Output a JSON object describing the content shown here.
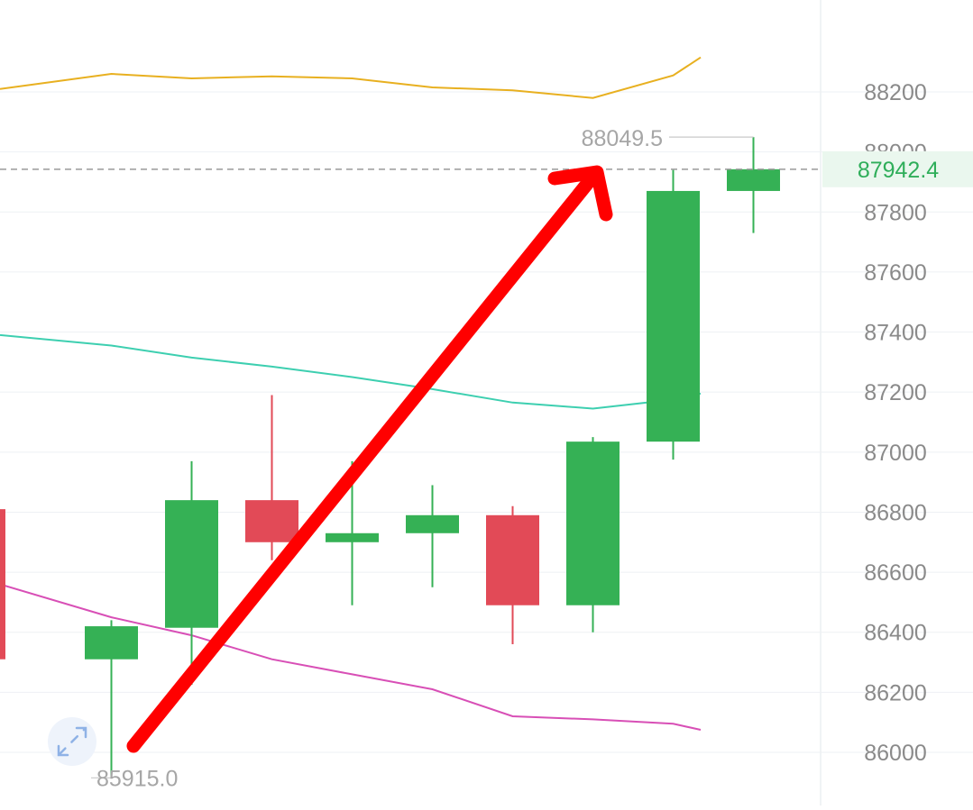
{
  "chart_data": {
    "type": "candlestick",
    "y_axis": {
      "ticks": [
        86000,
        86200,
        86400,
        86600,
        86800,
        87000,
        87200,
        87400,
        87600,
        87800,
        88000,
        88200
      ],
      "ylim": [
        85915,
        88330
      ],
      "side": "right"
    },
    "current_price": {
      "value": 87942.4,
      "label": "87942.4",
      "color": "#2fae5a"
    },
    "high_marker": {
      "value": 88049.5,
      "label": "88049.5"
    },
    "low_marker": {
      "value": 85915.0,
      "label": "85915.0"
    },
    "candles": [
      {
        "open": 86810,
        "close": 86310,
        "high": 86810,
        "low": 86310,
        "direction": "down"
      },
      {
        "open": 86310,
        "close": 86420,
        "high": 86440,
        "low": 85915,
        "direction": "up"
      },
      {
        "open": 86415,
        "close": 86840,
        "high": 86970,
        "low": 86225,
        "direction": "up"
      },
      {
        "open": 86840,
        "close": 86700,
        "high": 87190,
        "low": 86640,
        "direction": "down"
      },
      {
        "open": 86700,
        "close": 86730,
        "high": 86970,
        "low": 86490,
        "direction": "up"
      },
      {
        "open": 86730,
        "close": 86790,
        "high": 86890,
        "low": 86550,
        "direction": "up"
      },
      {
        "open": 86790,
        "close": 86490,
        "high": 86820,
        "low": 86360,
        "direction": "down"
      },
      {
        "open": 86490,
        "close": 87035,
        "high": 87050,
        "low": 86400,
        "direction": "up"
      },
      {
        "open": 87035,
        "close": 87870,
        "high": 87940,
        "low": 86975,
        "direction": "up"
      },
      {
        "open": 87870,
        "close": 87942.4,
        "high": 88049.5,
        "low": 87730,
        "direction": "up"
      }
    ],
    "lines": [
      {
        "color": "#e8b020",
        "values": [
          88210,
          88260,
          88245,
          88252,
          88245,
          88215,
          88205,
          88180,
          88255,
          88315
        ]
      },
      {
        "color": "#3dcfb0",
        "values": [
          87390,
          87355,
          87315,
          87285,
          87250,
          87210,
          87165,
          87145,
          87175,
          87195
        ]
      },
      {
        "color": "#d84fb6",
        "values": [
          86560,
          86450,
          86390,
          86310,
          86260,
          86210,
          86120,
          86110,
          86095,
          86075
        ]
      }
    ],
    "colors": {
      "up": "#35b155",
      "down": "#e24a57",
      "grid": "#eef1f4",
      "axis_text": "#8a8a8a",
      "marker_text": "#a6a6a6"
    }
  },
  "annotation": {
    "type": "arrow",
    "color": "#ff0000"
  },
  "icons": {
    "expand": "expand-icon"
  }
}
